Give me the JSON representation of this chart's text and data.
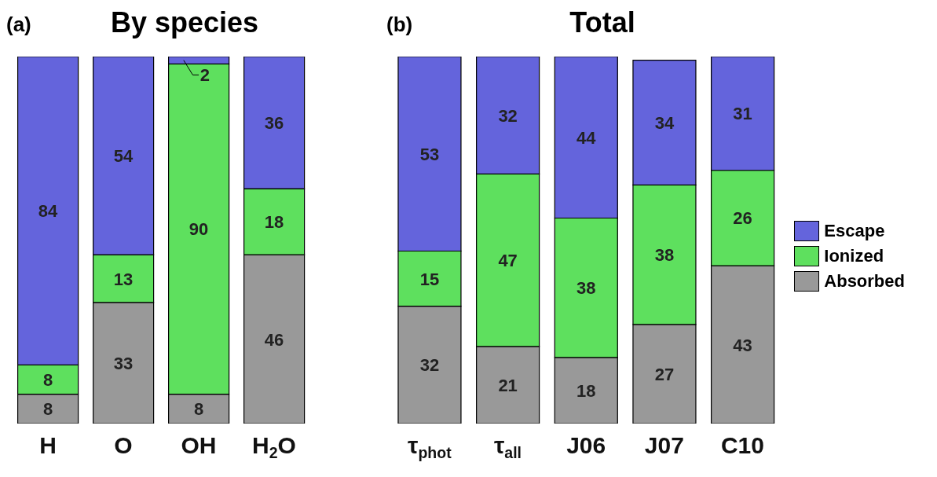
{
  "chart_data": [
    {
      "type": "bar",
      "title": "By species",
      "annotations": [
        "(a)"
      ],
      "categories": [
        "H",
        "O",
        "OH",
        "H$_{2}$O"
      ],
      "stacked": true,
      "data_labels": true,
      "ylim": [
        0,
        100
      ],
      "tick_labels": "x",
      "legend": false,
      "series": [
        {
          "color": "#999999",
          "values": [
            8,
            33,
            8,
            46
          ]
        },
        {
          "color": "#5ee05e",
          "values": [
            8,
            13,
            90,
            18
          ]
        },
        {
          "color": "#6464dc",
          "values": [
            84,
            54,
            2,
            36
          ]
        }
      ]
    },
    {
      "type": "bar",
      "title": "Total",
      "annotations": [
        "(b)"
      ],
      "categories": [
        "τ$_{phot}$",
        "τ$_{all}$",
        "J06",
        "J07",
        "C10"
      ],
      "stacked": true,
      "data_labels": true,
      "ylim": [
        0,
        100
      ],
      "tick_labels": "x",
      "legend": "right",
      "series": [
        {
          "name": "Absorbed",
          "color": "#999999",
          "values": [
            32,
            21,
            18,
            27,
            43
          ]
        },
        {
          "name": "Ionized",
          "color": "#5ee05e",
          "values": [
            15,
            47,
            38,
            38,
            26
          ]
        },
        {
          "name": "Escape",
          "color": "#6464dc",
          "values": [
            53,
            32,
            44,
            34,
            31
          ]
        }
      ]
    }
  ]
}
